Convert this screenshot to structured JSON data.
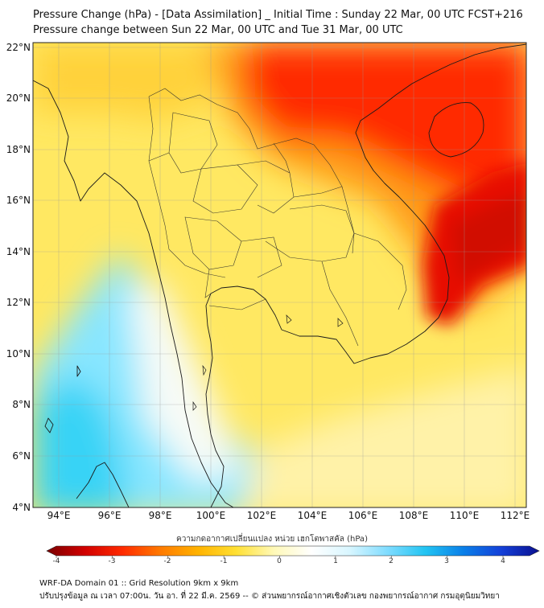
{
  "title_line1": "Pressure Change (hPa) - [Data Assimilation] _ Initial Time : Sunday 22 Mar, 00 UTC FCST+216",
  "title_line2": "Pressure change between Sun 22 Mar, 00 UTC and Tue 31 Mar, 00 UTC",
  "lat_labels": [
    "22°N",
    "20°N",
    "18°N",
    "16°N",
    "14°N",
    "12°N",
    "10°N",
    "8°N",
    "6°N",
    "4°N"
  ],
  "lon_labels": [
    "94°E",
    "96°E",
    "98°E",
    "100°E",
    "102°E",
    "104°E",
    "106°E",
    "108°E",
    "110°E",
    "112°E"
  ],
  "colorbar": {
    "title": "ความกดอากาศเปลี่ยนแปลง หน่วย เฮกโตพาสคัล (hPa)",
    "ticks": [
      "-4",
      "-3",
      "-2",
      "-1",
      "0",
      "1",
      "2",
      "3",
      "4"
    ],
    "colors": [
      "#7a0000",
      "#d10000",
      "#ff2a00",
      "#ff7a00",
      "#ffb300",
      "#ffe033",
      "#fff9b8",
      "#ffffff",
      "#d8f6ff",
      "#7fdcff",
      "#22c4f2",
      "#0a7fe8",
      "#1440d8",
      "#0a1090"
    ]
  },
  "footer_line1": "WRF-DA Domain 01 :: Grid Resolution 9km x 9km",
  "footer_line2": "ปรับปรุงข้อมูล ณ เวลา 07:00น. วัน อา. ที่ 22 มี.ค. 2569 -- © ส่วนพยากรณ์อากาศเชิงตัวเลข กองพยากรณ์อากาศ กรมอุตุนิยมวิทยา"
}
